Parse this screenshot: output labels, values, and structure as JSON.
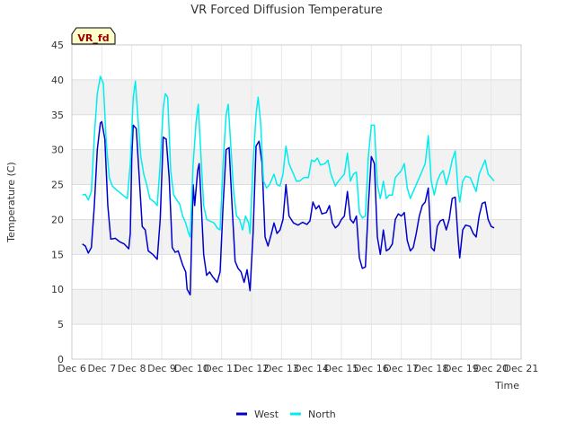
{
  "chart_data": {
    "type": "line",
    "title": "VR Forced Diffusion Temperature",
    "xlabel": "Time",
    "ylabel": "Temperature (C)",
    "badge": "VR_fd",
    "ylim": [
      0,
      45
    ],
    "xlim": [
      6,
      21
    ],
    "yticks": [
      0,
      5,
      10,
      15,
      20,
      25,
      30,
      35,
      40,
      45
    ],
    "xticks": [
      {
        "v": 6,
        "label": "Dec 6"
      },
      {
        "v": 7,
        "label": "Dec 7"
      },
      {
        "v": 8,
        "label": "Dec 8"
      },
      {
        "v": 9,
        "label": "Dec 9"
      },
      {
        "v": 10,
        "label": "Dec 10"
      },
      {
        "v": 11,
        "label": "Dec 11"
      },
      {
        "v": 12,
        "label": "Dec 12"
      },
      {
        "v": 13,
        "label": "Dec 13"
      },
      {
        "v": 14,
        "label": "Dec 14"
      },
      {
        "v": 15,
        "label": "Dec 15"
      },
      {
        "v": 16,
        "label": "Dec 16"
      },
      {
        "v": 17,
        "label": "Dec 17"
      },
      {
        "v": 18,
        "label": "Dec 18"
      },
      {
        "v": 19,
        "label": "Dec 19"
      },
      {
        "v": 20,
        "label": "Dec 20"
      },
      {
        "v": 21,
        "label": "Dec 21"
      }
    ],
    "grid": true,
    "legend": "bottom",
    "series": [
      {
        "name": "West",
        "color": "#0000cc",
        "points": [
          [
            6.35,
            16.5
          ],
          [
            6.45,
            16.2
          ],
          [
            6.55,
            15.2
          ],
          [
            6.65,
            16.0
          ],
          [
            6.75,
            22.0
          ],
          [
            6.85,
            30.0
          ],
          [
            6.95,
            33.8
          ],
          [
            7.0,
            34.0
          ],
          [
            7.1,
            31.5
          ],
          [
            7.2,
            22.0
          ],
          [
            7.3,
            17.2
          ],
          [
            7.45,
            17.3
          ],
          [
            7.6,
            16.8
          ],
          [
            7.75,
            16.5
          ],
          [
            7.9,
            15.8
          ],
          [
            7.95,
            18.0
          ],
          [
            8.0,
            29.0
          ],
          [
            8.05,
            33.5
          ],
          [
            8.15,
            33.0
          ],
          [
            8.25,
            26.0
          ],
          [
            8.35,
            19.0
          ],
          [
            8.45,
            18.5
          ],
          [
            8.55,
            15.5
          ],
          [
            8.7,
            15.0
          ],
          [
            8.85,
            14.3
          ],
          [
            8.95,
            20.0
          ],
          [
            9.05,
            31.8
          ],
          [
            9.15,
            31.5
          ],
          [
            9.25,
            26.0
          ],
          [
            9.35,
            16.0
          ],
          [
            9.45,
            15.3
          ],
          [
            9.55,
            15.5
          ],
          [
            9.7,
            13.5
          ],
          [
            9.8,
            12.5
          ],
          [
            9.85,
            10.0
          ],
          [
            9.95,
            9.2
          ],
          [
            10.0,
            17.0
          ],
          [
            10.05,
            25.0
          ],
          [
            10.1,
            22.0
          ],
          [
            10.2,
            27.0
          ],
          [
            10.25,
            28.0
          ],
          [
            10.3,
            24.0
          ],
          [
            10.4,
            15.0
          ],
          [
            10.5,
            12.0
          ],
          [
            10.6,
            12.5
          ],
          [
            10.7,
            11.8
          ],
          [
            10.85,
            11.0
          ],
          [
            10.95,
            12.5
          ],
          [
            11.05,
            22.0
          ],
          [
            11.15,
            30.0
          ],
          [
            11.25,
            30.3
          ],
          [
            11.35,
            22.0
          ],
          [
            11.45,
            14.0
          ],
          [
            11.55,
            13.0
          ],
          [
            11.65,
            12.5
          ],
          [
            11.75,
            11.0
          ],
          [
            11.85,
            12.8
          ],
          [
            11.95,
            9.8
          ],
          [
            12.05,
            18.0
          ],
          [
            12.15,
            30.5
          ],
          [
            12.25,
            31.2
          ],
          [
            12.35,
            28.0
          ],
          [
            12.45,
            17.5
          ],
          [
            12.55,
            16.2
          ],
          [
            12.65,
            17.8
          ],
          [
            12.75,
            19.5
          ],
          [
            12.85,
            18.0
          ],
          [
            12.95,
            18.5
          ],
          [
            13.05,
            20.0
          ],
          [
            13.15,
            25.0
          ],
          [
            13.25,
            20.5
          ],
          [
            13.4,
            19.5
          ],
          [
            13.55,
            19.2
          ],
          [
            13.7,
            19.6
          ],
          [
            13.85,
            19.3
          ],
          [
            13.95,
            19.8
          ],
          [
            14.05,
            22.5
          ],
          [
            14.15,
            21.5
          ],
          [
            14.25,
            22.0
          ],
          [
            14.35,
            20.8
          ],
          [
            14.5,
            21.0
          ],
          [
            14.6,
            22.0
          ],
          [
            14.7,
            19.5
          ],
          [
            14.8,
            18.8
          ],
          [
            14.9,
            19.2
          ],
          [
            15.0,
            20.0
          ],
          [
            15.1,
            20.5
          ],
          [
            15.2,
            24.0
          ],
          [
            15.3,
            20.0
          ],
          [
            15.4,
            19.5
          ],
          [
            15.5,
            20.5
          ],
          [
            15.6,
            14.5
          ],
          [
            15.7,
            13.0
          ],
          [
            15.8,
            13.2
          ],
          [
            15.9,
            22.0
          ],
          [
            16.0,
            29.0
          ],
          [
            16.1,
            28.0
          ],
          [
            16.2,
            17.5
          ],
          [
            16.3,
            15.0
          ],
          [
            16.4,
            18.5
          ],
          [
            16.5,
            15.5
          ],
          [
            16.6,
            15.8
          ],
          [
            16.7,
            16.5
          ],
          [
            16.8,
            20.0
          ],
          [
            16.9,
            20.8
          ],
          [
            17.0,
            20.5
          ],
          [
            17.1,
            21.0
          ],
          [
            17.2,
            17.0
          ],
          [
            17.3,
            15.5
          ],
          [
            17.4,
            16.0
          ],
          [
            17.5,
            18.0
          ],
          [
            17.6,
            20.5
          ],
          [
            17.7,
            22.0
          ],
          [
            17.8,
            22.5
          ],
          [
            17.9,
            24.5
          ],
          [
            18.0,
            16.0
          ],
          [
            18.1,
            15.5
          ],
          [
            18.2,
            19.0
          ],
          [
            18.3,
            19.8
          ],
          [
            18.4,
            20.0
          ],
          [
            18.5,
            18.5
          ],
          [
            18.6,
            20.0
          ],
          [
            18.7,
            23.0
          ],
          [
            18.8,
            23.2
          ],
          [
            18.9,
            17.0
          ],
          [
            18.95,
            14.5
          ],
          [
            19.05,
            18.5
          ],
          [
            19.15,
            19.2
          ],
          [
            19.3,
            19.0
          ],
          [
            19.4,
            18.0
          ],
          [
            19.5,
            17.5
          ],
          [
            19.6,
            20.5
          ],
          [
            19.7,
            22.3
          ],
          [
            19.8,
            22.5
          ],
          [
            19.9,
            20.0
          ],
          [
            20.0,
            19.0
          ],
          [
            20.1,
            18.8
          ]
        ]
      },
      {
        "name": "North",
        "color": "#00eeee",
        "points": [
          [
            6.35,
            23.5
          ],
          [
            6.45,
            23.6
          ],
          [
            6.55,
            22.8
          ],
          [
            6.65,
            24.0
          ],
          [
            6.75,
            32.0
          ],
          [
            6.85,
            38.0
          ],
          [
            6.95,
            40.5
          ],
          [
            7.05,
            39.5
          ],
          [
            7.15,
            31.0
          ],
          [
            7.25,
            26.0
          ],
          [
            7.35,
            24.8
          ],
          [
            7.5,
            24.2
          ],
          [
            7.7,
            23.5
          ],
          [
            7.85,
            23.0
          ],
          [
            7.95,
            28.0
          ],
          [
            8.05,
            37.5
          ],
          [
            8.12,
            39.8
          ],
          [
            8.2,
            35.0
          ],
          [
            8.3,
            29.0
          ],
          [
            8.4,
            26.5
          ],
          [
            8.5,
            25.0
          ],
          [
            8.6,
            23.0
          ],
          [
            8.75,
            22.5
          ],
          [
            8.85,
            22.0
          ],
          [
            8.95,
            28.0
          ],
          [
            9.05,
            36.0
          ],
          [
            9.12,
            38.0
          ],
          [
            9.2,
            37.5
          ],
          [
            9.3,
            27.0
          ],
          [
            9.4,
            23.5
          ],
          [
            9.5,
            22.8
          ],
          [
            9.6,
            22.2
          ],
          [
            9.7,
            20.5
          ],
          [
            9.8,
            19.5
          ],
          [
            9.9,
            18.0
          ],
          [
            9.95,
            17.5
          ],
          [
            10.05,
            28.0
          ],
          [
            10.15,
            34.0
          ],
          [
            10.22,
            36.5
          ],
          [
            10.3,
            30.0
          ],
          [
            10.4,
            22.0
          ],
          [
            10.5,
            20.0
          ],
          [
            10.6,
            19.8
          ],
          [
            10.75,
            19.5
          ],
          [
            10.85,
            18.8
          ],
          [
            10.95,
            18.5
          ],
          [
            11.05,
            28.0
          ],
          [
            11.15,
            35.0
          ],
          [
            11.22,
            36.5
          ],
          [
            11.3,
            31.0
          ],
          [
            11.4,
            24.0
          ],
          [
            11.5,
            20.5
          ],
          [
            11.6,
            20.0
          ],
          [
            11.7,
            18.5
          ],
          [
            11.8,
            20.5
          ],
          [
            11.9,
            19.5
          ],
          [
            11.95,
            18.0
          ],
          [
            12.05,
            28.0
          ],
          [
            12.15,
            35.0
          ],
          [
            12.22,
            37.5
          ],
          [
            12.3,
            34.0
          ],
          [
            12.4,
            25.5
          ],
          [
            12.5,
            24.5
          ],
          [
            12.6,
            25.0
          ],
          [
            12.7,
            26.0
          ],
          [
            12.75,
            26.5
          ],
          [
            12.85,
            25.0
          ],
          [
            12.95,
            24.8
          ],
          [
            13.05,
            26.5
          ],
          [
            13.15,
            30.5
          ],
          [
            13.25,
            28.0
          ],
          [
            13.35,
            27.0
          ],
          [
            13.5,
            25.5
          ],
          [
            13.6,
            25.5
          ],
          [
            13.75,
            26.0
          ],
          [
            13.9,
            26.0
          ],
          [
            14.0,
            28.5
          ],
          [
            14.1,
            28.3
          ],
          [
            14.2,
            28.8
          ],
          [
            14.3,
            27.8
          ],
          [
            14.45,
            28.0
          ],
          [
            14.55,
            28.5
          ],
          [
            14.65,
            26.5
          ],
          [
            14.8,
            24.8
          ],
          [
            14.9,
            25.5
          ],
          [
            15.0,
            26.0
          ],
          [
            15.1,
            26.5
          ],
          [
            15.2,
            29.5
          ],
          [
            15.3,
            25.5
          ],
          [
            15.4,
            26.5
          ],
          [
            15.5,
            26.8
          ],
          [
            15.6,
            21.0
          ],
          [
            15.7,
            20.2
          ],
          [
            15.8,
            20.5
          ],
          [
            15.9,
            29.0
          ],
          [
            16.0,
            33.5
          ],
          [
            16.1,
            33.5
          ],
          [
            16.2,
            25.0
          ],
          [
            16.3,
            23.0
          ],
          [
            16.4,
            25.5
          ],
          [
            16.5,
            23.0
          ],
          [
            16.6,
            23.5
          ],
          [
            16.7,
            23.5
          ],
          [
            16.8,
            26.0
          ],
          [
            16.9,
            26.5
          ],
          [
            17.0,
            27.0
          ],
          [
            17.1,
            28.0
          ],
          [
            17.2,
            24.5
          ],
          [
            17.3,
            23.0
          ],
          [
            17.4,
            24.0
          ],
          [
            17.5,
            25.0
          ],
          [
            17.6,
            26.0
          ],
          [
            17.7,
            27.0
          ],
          [
            17.8,
            28.0
          ],
          [
            17.9,
            32.0
          ],
          [
            18.0,
            25.5
          ],
          [
            18.1,
            23.5
          ],
          [
            18.2,
            25.5
          ],
          [
            18.3,
            26.5
          ],
          [
            18.4,
            27.0
          ],
          [
            18.5,
            25.0
          ],
          [
            18.6,
            26.5
          ],
          [
            18.7,
            28.5
          ],
          [
            18.8,
            29.8
          ],
          [
            18.9,
            24.0
          ],
          [
            18.95,
            22.5
          ],
          [
            19.05,
            25.5
          ],
          [
            19.15,
            26.2
          ],
          [
            19.3,
            26.0
          ],
          [
            19.4,
            25.0
          ],
          [
            19.5,
            24.0
          ],
          [
            19.6,
            26.5
          ],
          [
            19.7,
            27.5
          ],
          [
            19.8,
            28.5
          ],
          [
            19.9,
            26.5
          ],
          [
            20.0,
            26.0
          ],
          [
            20.1,
            25.5
          ]
        ]
      }
    ]
  }
}
